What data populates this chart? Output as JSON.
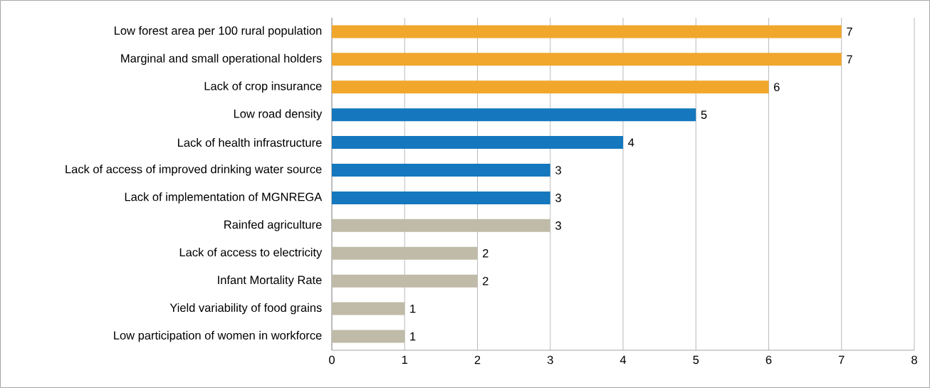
{
  "chart_data": {
    "type": "bar",
    "orientation": "horizontal",
    "categories": [
      "Low forest area per 100 rural population",
      "Marginal and small operational holders",
      "Lack of crop insurance",
      "Low road density",
      "Lack of health infrastructure",
      "Lack of access of improved drinking water source",
      "Lack of implementation of MGNREGA",
      "Rainfed agriculture",
      "Lack of access to electricity",
      "Infant Mortality Rate",
      "Yield variability of food grains",
      "Low participation of women in workforce"
    ],
    "values": [
      7,
      7,
      6,
      5,
      4,
      3,
      3,
      3,
      2,
      2,
      1,
      1
    ],
    "colors": [
      "#f0a72c",
      "#f0a72c",
      "#f0a72c",
      "#1577bd",
      "#1577bd",
      "#1577bd",
      "#1577bd",
      "#bfbba8",
      "#bfbba8",
      "#bfbba8",
      "#bfbba8",
      "#bfbba8"
    ],
    "xlim": [
      0,
      8
    ],
    "xticks": [
      0,
      1,
      2,
      3,
      4,
      5,
      6,
      7,
      8
    ],
    "grid": "x",
    "data_labels": true
  }
}
